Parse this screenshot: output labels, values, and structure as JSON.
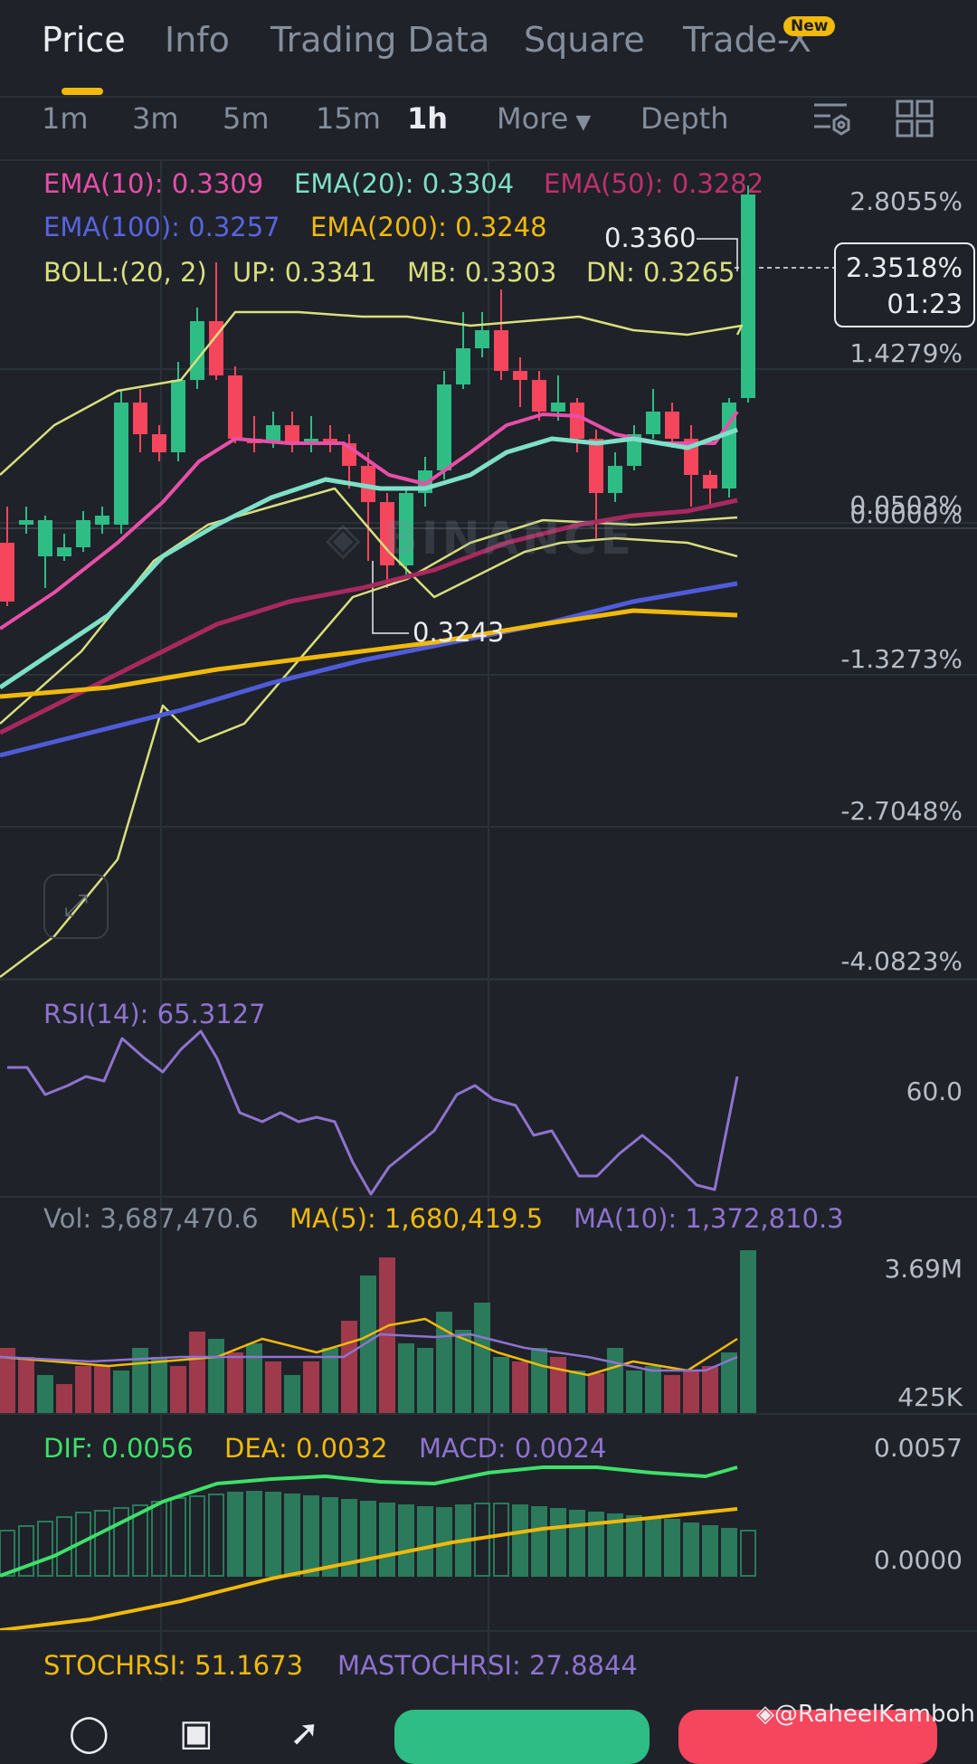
{
  "tabs": [
    {
      "label": "Price",
      "active": true
    },
    {
      "label": "Info"
    },
    {
      "label": "Trading Data"
    },
    {
      "label": "Square"
    },
    {
      "label": "Trade-X",
      "badge": "New"
    }
  ],
  "intervals": [
    "1m",
    "3m",
    "5m",
    "15m",
    "1h",
    "More",
    "Depth"
  ],
  "active_interval": "1h",
  "indicators": {
    "ema10": "EMA(10): 0.3309",
    "ema20": "EMA(20): 0.3304",
    "ema50": "EMA(50): 0.3282",
    "ema100": "EMA(100): 0.3257",
    "ema200": "EMA(200): 0.3248",
    "boll": "BOLL:(20, 2)",
    "boll_up": "UP: 0.3341",
    "boll_mb": "MB: 0.3303",
    "boll_dn": "DN: 0.3265"
  },
  "price_axis": [
    "2.8055%",
    "1.4279%",
    "0.0503%",
    "0.0000%",
    "-1.3273%",
    "-2.7048%",
    "-4.0823%"
  ],
  "price_tag": {
    "pct": "2.3518%",
    "countdown": "01:23"
  },
  "high_label": "0.3360",
  "low_label": "0.3243",
  "watermark_brand": "BINANCE",
  "rsi": {
    "label": "RSI(14): 65.3127",
    "axis": "60.0"
  },
  "volume": {
    "vol": "Vol: 3,687,470.6",
    "ma5": "MA(5): 1,680,419.5",
    "ma10": "MA(10): 1,372,810.3",
    "axis_top": "3.69M",
    "axis_bottom": "425K"
  },
  "macd": {
    "dif": "DIF: 0.0056",
    "dea": "DEA: 0.0032",
    "macd": "MACD: 0.0024",
    "axis_top": "0.0057",
    "axis_bottom": "0.0000"
  },
  "stochrsi": {
    "label": "STOCHRSI: 51.1673",
    "ma": "MASTOCHRSI: 27.8844"
  },
  "credit": "@RaheelKamboh",
  "colors": {
    "up": "#2ebd85",
    "down": "#f6465d",
    "ema10": "#e84fa8",
    "ema20": "#7de0c8",
    "ema50": "#a8285f",
    "ema100": "#4f5bd8",
    "ema200": "#f0b90b",
    "boll": "#d8df7c",
    "rsi": "#8e73cf",
    "dif": "#3ee06a",
    "dea": "#f0b90b"
  }
}
